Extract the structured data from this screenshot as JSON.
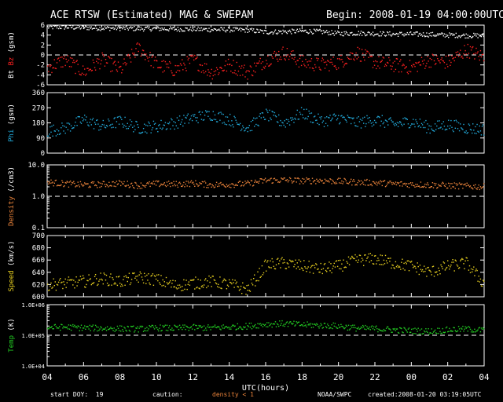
{
  "header": {
    "title": "ACE RTSW (Estimated) MAG & SWEPAM",
    "begin": "Begin: 2008-01-19 04:00:00UTC"
  },
  "footer": {
    "start_doy": "start DOY:  19",
    "caution": "caution:",
    "density_note": "density < 1",
    "source": "NOAA/SWPC",
    "created": "created:2008-01-20 03:19:05UTC"
  },
  "colors": {
    "frame": "#ffffff",
    "bt": "#ffffff",
    "bz": "#ff2020",
    "phi": "#22a8d8",
    "density": "#e8823a",
    "speed": "#e8d020",
    "temp": "#22cc22"
  },
  "chart_data": [
    {
      "type": "scatter",
      "ylabel_parts": [
        "Bt",
        "Bz",
        "(gsm)"
      ],
      "ylim": [
        -6,
        6
      ],
      "yticks": [
        -6,
        -4,
        -2,
        0,
        2,
        4,
        6
      ],
      "ytick_labels": [
        "-6",
        "-4",
        "-2",
        "0",
        "2",
        "4",
        "6"
      ],
      "dashed_ref": 0,
      "series": [
        {
          "name": "Bt",
          "color": "#ffffff",
          "x": [
            0,
            1,
            2,
            3,
            4,
            5,
            6,
            7,
            8,
            9,
            10,
            11,
            12,
            13,
            14,
            15,
            16,
            17,
            18,
            19,
            20,
            21,
            22,
            23,
            24
          ],
          "values": [
            5.6,
            5.6,
            5.5,
            5.4,
            5.4,
            5.3,
            5.3,
            5.2,
            5.2,
            5.1,
            5.1,
            5.0,
            4.6,
            4.7,
            4.8,
            4.7,
            4.3,
            4.4,
            4.3,
            4.2,
            4.2,
            4.1,
            4.0,
            3.9,
            3.9
          ]
        },
        {
          "name": "Bz",
          "color": "#ff2020",
          "x": [
            0,
            1,
            2,
            3,
            4,
            5,
            6,
            7,
            8,
            9,
            10,
            11,
            12,
            13,
            14,
            15,
            16,
            17,
            18,
            19,
            20,
            21,
            22,
            23,
            24
          ],
          "values": [
            -2.5,
            -1.0,
            -3.5,
            -1.0,
            -3.0,
            1.5,
            -2.0,
            -3.0,
            -1.0,
            -3.5,
            -2.0,
            -3.5,
            -1.0,
            0.5,
            -1.5,
            -2.0,
            -1.5,
            0.5,
            -1.5,
            -2.0,
            -2.5,
            -1.0,
            -1.5,
            1.0,
            -0.5
          ]
        }
      ]
    },
    {
      "type": "scatter",
      "ylabel_parts": [
        "Phi",
        "(gsm)"
      ],
      "ylim": [
        0,
        360
      ],
      "yticks": [
        0,
        90,
        180,
        270,
        360
      ],
      "ytick_labels": [
        "0",
        "90",
        "180",
        "270",
        "360"
      ],
      "series": [
        {
          "name": "Phi",
          "color": "#22a8d8",
          "x": [
            0,
            1,
            2,
            3,
            4,
            5,
            6,
            7,
            8,
            9,
            10,
            11,
            12,
            13,
            14,
            15,
            16,
            17,
            18,
            19,
            20,
            21,
            22,
            23,
            24
          ],
          "values": [
            130,
            150,
            200,
            160,
            190,
            150,
            160,
            180,
            210,
            230,
            200,
            150,
            230,
            180,
            240,
            190,
            210,
            180,
            200,
            170,
            190,
            150,
            170,
            150,
            140
          ]
        }
      ]
    },
    {
      "type": "scatter",
      "ylabel_parts": [
        "Density",
        "(/cm3)"
      ],
      "log": true,
      "ylim": [
        0.1,
        10
      ],
      "yticks": [
        0.1,
        1,
        10
      ],
      "ytick_labels": [
        "0.1",
        "1.0",
        "10.0"
      ],
      "dashed_ref": 1,
      "series": [
        {
          "name": "Density",
          "color": "#e8823a",
          "x": [
            0,
            1,
            2,
            3,
            4,
            5,
            6,
            7,
            8,
            9,
            10,
            11,
            12,
            13,
            14,
            15,
            16,
            17,
            18,
            19,
            20,
            21,
            22,
            23,
            24
          ],
          "values": [
            2.8,
            2.5,
            2.3,
            2.4,
            2.6,
            2.2,
            2.5,
            2.4,
            2.6,
            2.3,
            2.4,
            2.5,
            3.2,
            3.3,
            3.1,
            3.2,
            3.0,
            2.8,
            2.7,
            2.5,
            2.4,
            2.3,
            2.2,
            2.1,
            2.0
          ]
        }
      ]
    },
    {
      "type": "scatter",
      "ylabel_parts": [
        "Speed",
        "(km/s)"
      ],
      "ylim": [
        600,
        700
      ],
      "yticks": [
        600,
        620,
        640,
        660,
        680,
        700
      ],
      "ytick_labels": [
        "600",
        "620",
        "640",
        "660",
        "680",
        "700"
      ],
      "series": [
        {
          "name": "Speed",
          "color": "#e8d020",
          "x": [
            0,
            1,
            2,
            3,
            4,
            5,
            6,
            7,
            8,
            9,
            10,
            11,
            12,
            13,
            14,
            15,
            16,
            17,
            18,
            19,
            20,
            21,
            22,
            23,
            24
          ],
          "values": [
            620,
            622,
            625,
            630,
            625,
            632,
            628,
            618,
            622,
            625,
            620,
            612,
            652,
            655,
            650,
            645,
            650,
            660,
            662,
            655,
            650,
            640,
            650,
            655,
            620
          ]
        }
      ]
    },
    {
      "type": "scatter",
      "ylabel_parts": [
        "Temp",
        "(K)"
      ],
      "log": true,
      "ylim": [
        10000,
        1000000
      ],
      "yticks": [
        10000,
        100000,
        1000000
      ],
      "ytick_labels": [
        "1.0E+04",
        "1.0E+05",
        "1.0E+06"
      ],
      "dashed_ref": 100000,
      "series": [
        {
          "name": "Temp",
          "color": "#22cc22",
          "x": [
            0,
            1,
            2,
            3,
            4,
            5,
            6,
            7,
            8,
            9,
            10,
            11,
            12,
            13,
            14,
            15,
            16,
            17,
            18,
            19,
            20,
            21,
            22,
            23,
            24
          ],
          "values": [
            180000,
            185000,
            175000,
            170000,
            165000,
            160000,
            175000,
            170000,
            180000,
            175000,
            185000,
            200000,
            230000,
            240000,
            220000,
            210000,
            200000,
            170000,
            165000,
            150000,
            140000,
            135000,
            150000,
            160000,
            145000
          ]
        }
      ]
    }
  ],
  "xaxis": {
    "xlabel": "UTC(hours)",
    "tick_labels": [
      "04",
      "06",
      "08",
      "10",
      "12",
      "14",
      "16",
      "18",
      "20",
      "22",
      "00",
      "02",
      "04"
    ],
    "range_hours": [
      0,
      24
    ]
  }
}
